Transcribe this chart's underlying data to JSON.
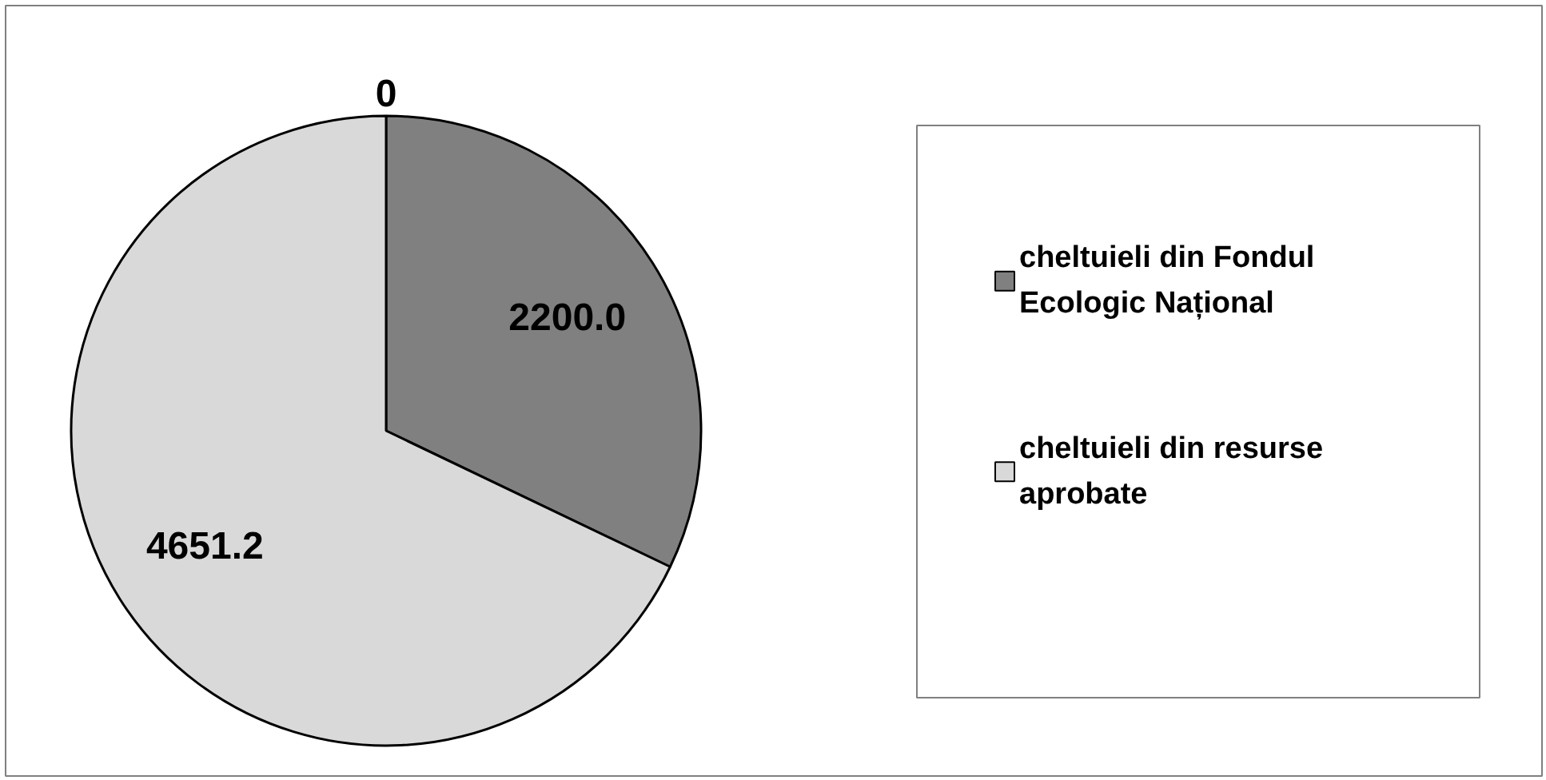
{
  "chart_data": {
    "type": "pie",
    "categories": [
      "cheltuieli din Fondul Ecologic Național",
      "cheltuieli din resurse aprobate"
    ],
    "values": [
      2200.0,
      4651.2
    ],
    "colors": [
      "#808080",
      "#d9d9d9"
    ],
    "value_labels": [
      "2200.0",
      "4651.2"
    ],
    "annotations": [
      "0"
    ],
    "legend": "right"
  }
}
